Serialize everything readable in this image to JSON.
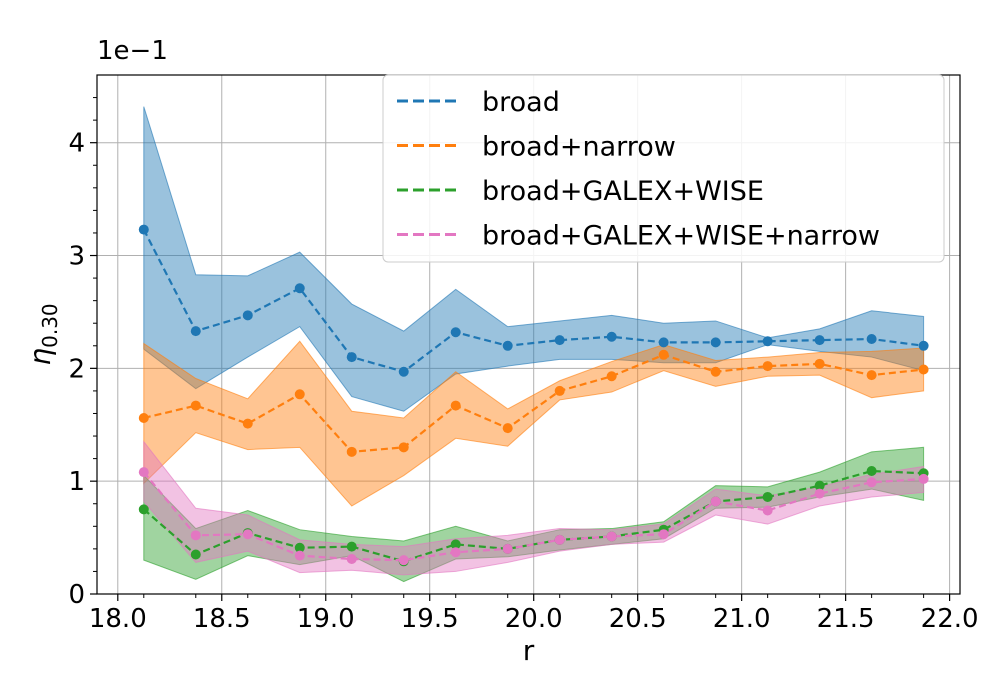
{
  "chart_data": {
    "type": "line",
    "xlabel": "r",
    "ylabel_main": "η",
    "ylabel_sub": "0.30",
    "offset_text": "1e−1",
    "xlim": [
      17.9,
      22.05
    ],
    "ylim": [
      0,
      4.6
    ],
    "xticks": [
      18.0,
      18.5,
      19.0,
      19.5,
      20.0,
      20.5,
      21.0,
      21.5,
      22.0
    ],
    "xtick_labels": [
      "18.0",
      "18.5",
      "19.0",
      "19.5",
      "20.0",
      "20.5",
      "21.0",
      "21.5",
      "22.0"
    ],
    "yticks": [
      0,
      1,
      2,
      3,
      4
    ],
    "ytick_labels": [
      "0",
      "1",
      "2",
      "3",
      "4"
    ],
    "grid": true,
    "legend_position": "top-right",
    "x": [
      18.125,
      18.375,
      18.625,
      18.875,
      19.125,
      19.375,
      19.625,
      19.875,
      20.125,
      20.375,
      20.625,
      20.875,
      21.125,
      21.375,
      21.625,
      21.875
    ],
    "series": [
      {
        "name": "broad",
        "color": "#1f77b4",
        "values": [
          3.23,
          2.33,
          2.47,
          2.71,
          2.1,
          1.97,
          2.32,
          2.2,
          2.25,
          2.28,
          2.23,
          2.23,
          2.24,
          2.25,
          2.26,
          2.2
        ],
        "upper": [
          4.32,
          2.83,
          2.82,
          3.03,
          2.57,
          2.33,
          2.7,
          2.37,
          2.42,
          2.47,
          2.4,
          2.42,
          2.27,
          2.35,
          2.51,
          2.46
        ],
        "lower": [
          2.17,
          1.82,
          2.1,
          2.37,
          1.75,
          1.62,
          1.95,
          2.02,
          2.08,
          2.08,
          2.05,
          2.05,
          2.21,
          2.15,
          2.1,
          1.98
        ]
      },
      {
        "name": "broad+narrow",
        "color": "#ff7f0e",
        "values": [
          1.56,
          1.67,
          1.51,
          1.77,
          1.26,
          1.3,
          1.67,
          1.47,
          1.8,
          1.93,
          2.12,
          1.97,
          2.02,
          2.04,
          1.94,
          1.99
        ],
        "upper": [
          2.22,
          1.91,
          1.73,
          2.24,
          1.62,
          1.56,
          1.97,
          1.64,
          1.89,
          2.06,
          2.21,
          2.07,
          2.1,
          2.14,
          2.15,
          2.18
        ],
        "lower": [
          0.98,
          1.43,
          1.28,
          1.3,
          0.78,
          1.05,
          1.38,
          1.31,
          1.72,
          1.79,
          1.98,
          1.84,
          1.93,
          1.94,
          1.74,
          1.8
        ]
      },
      {
        "name": "broad+GALEX+WISE",
        "color": "#2ca02c",
        "values": [
          0.75,
          0.35,
          0.54,
          0.41,
          0.42,
          0.29,
          0.44,
          0.4,
          0.48,
          0.51,
          0.57,
          0.82,
          0.86,
          0.96,
          1.09,
          1.07
        ],
        "upper": [
          1.05,
          0.58,
          0.74,
          0.57,
          0.51,
          0.47,
          0.6,
          0.47,
          0.57,
          0.58,
          0.64,
          0.96,
          0.95,
          1.08,
          1.26,
          1.3
        ],
        "lower": [
          0.3,
          0.13,
          0.34,
          0.26,
          0.34,
          0.11,
          0.31,
          0.33,
          0.39,
          0.44,
          0.49,
          0.76,
          0.77,
          0.86,
          0.93,
          0.83
        ]
      },
      {
        "name": "broad+GALEX+WISE+narrow",
        "color": "#e377c2",
        "values": [
          1.08,
          0.52,
          0.53,
          0.34,
          0.31,
          0.3,
          0.37,
          0.4,
          0.48,
          0.51,
          0.53,
          0.82,
          0.74,
          0.89,
          0.99,
          1.02
        ],
        "upper": [
          1.35,
          0.76,
          0.7,
          0.48,
          0.44,
          0.42,
          0.49,
          0.52,
          0.58,
          0.57,
          0.62,
          0.93,
          0.87,
          0.95,
          1.06,
          1.13
        ],
        "lower": [
          0.82,
          0.28,
          0.38,
          0.19,
          0.21,
          0.17,
          0.2,
          0.28,
          0.38,
          0.44,
          0.46,
          0.7,
          0.62,
          0.78,
          0.86,
          0.9
        ]
      }
    ]
  }
}
